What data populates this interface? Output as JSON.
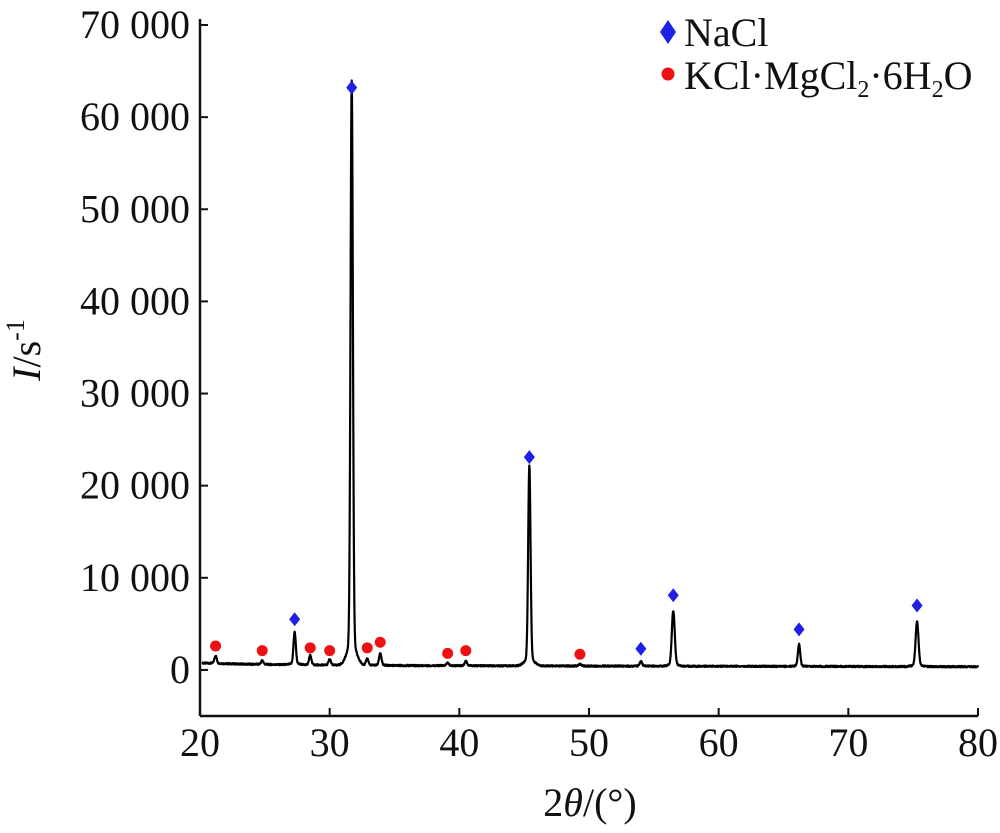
{
  "chart_data": {
    "type": "line",
    "xlabel": {
      "main": "2",
      "italic": "θ",
      "rest": "/(°)"
    },
    "ylabel": {
      "italic": "I",
      "rest": "/s",
      "sup": "-1"
    },
    "xlim": [
      20,
      80
    ],
    "ylim": [
      -5000,
      70000
    ],
    "xticks": [
      20,
      30,
      40,
      50,
      60,
      70,
      80
    ],
    "xtick_labels": [
      "20",
      "30",
      "40",
      "50",
      "60",
      "70",
      "80"
    ],
    "yticks": [
      0,
      10000,
      20000,
      30000,
      40000,
      50000,
      60000,
      70000
    ],
    "ytick_labels": [
      "0",
      "10 000",
      "20 000",
      "30 000",
      "40 000",
      "50 000",
      "60 000",
      "70 000"
    ],
    "grid": false,
    "legend_position": "top-right",
    "series": [
      {
        "color": "#000000",
        "baseline": 500,
        "peaks": [
          {
            "x": 21.2,
            "y": 1300
          },
          {
            "x": 24.8,
            "y": 900
          },
          {
            "x": 27.3,
            "y": 3900
          },
          {
            "x": 28.5,
            "y": 1500
          },
          {
            "x": 30.0,
            "y": 1100
          },
          {
            "x": 31.7,
            "y": 61500
          },
          {
            "x": 32.9,
            "y": 1200
          },
          {
            "x": 33.9,
            "y": 1800
          },
          {
            "x": 39.1,
            "y": 800
          },
          {
            "x": 40.5,
            "y": 1000
          },
          {
            "x": 45.4,
            "y": 21500
          },
          {
            "x": 49.3,
            "y": 700
          },
          {
            "x": 54.0,
            "y": 1000
          },
          {
            "x": 56.5,
            "y": 6300
          },
          {
            "x": 66.2,
            "y": 2800
          },
          {
            "x": 75.3,
            "y": 5200
          }
        ]
      }
    ],
    "markers": [
      {
        "phase": "NaCl",
        "x": 27.3,
        "y": 5500
      },
      {
        "phase": "NaCl",
        "x": 31.7,
        "y": 63200
      },
      {
        "phase": "NaCl",
        "x": 45.4,
        "y": 23100
      },
      {
        "phase": "NaCl",
        "x": 54.0,
        "y": 2300
      },
      {
        "phase": "NaCl",
        "x": 56.5,
        "y": 8100
      },
      {
        "phase": "NaCl",
        "x": 66.2,
        "y": 4400
      },
      {
        "phase": "NaCl",
        "x": 75.3,
        "y": 7000
      },
      {
        "phase": "KCl·MgCl2·6H2O",
        "x": 21.2,
        "y": 2600
      },
      {
        "phase": "KCl·MgCl2·6H2O",
        "x": 24.8,
        "y": 2100
      },
      {
        "phase": "KCl·MgCl2·6H2O",
        "x": 28.5,
        "y": 2400
      },
      {
        "phase": "KCl·MgCl2·6H2O",
        "x": 30.0,
        "y": 2100
      },
      {
        "phase": "KCl·MgCl2·6H2O",
        "x": 32.9,
        "y": 2400
      },
      {
        "phase": "KCl·MgCl2·6H2O",
        "x": 33.9,
        "y": 3000
      },
      {
        "phase": "KCl·MgCl2·6H2O",
        "x": 39.1,
        "y": 1800
      },
      {
        "phase": "KCl·MgCl2·6H2O",
        "x": 40.5,
        "y": 2100
      },
      {
        "phase": "KCl·MgCl2·6H2O",
        "x": 49.3,
        "y": 1700
      }
    ],
    "legend": [
      {
        "name": "NaCl",
        "marker": "diamond",
        "color": "#1f1fe6"
      },
      {
        "name": "KCl·MgCl2·6H2O",
        "marker": "circle",
        "color": "#ee1111",
        "parts": [
          "KCl·MgCl",
          "2",
          "·6H",
          "2",
          "O"
        ]
      }
    ]
  }
}
